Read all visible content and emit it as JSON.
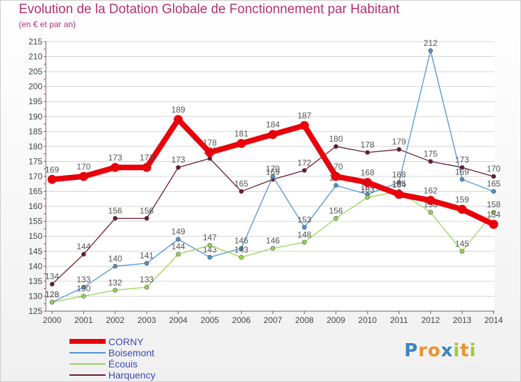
{
  "page": {
    "title": "Evolution de la Dotation Globale de Fonctionnement par Habitant",
    "subtitle": "(en € et par an)"
  },
  "logo": {
    "letters": [
      "P",
      "r",
      "o",
      "x",
      "i",
      "t",
      "i"
    ],
    "colors": [
      "#3b83c4",
      "#e8942a",
      "#e8942a",
      "#3b83c4",
      "#9fc93c",
      "#e8942a",
      "#9fc93c"
    ]
  },
  "chart_data": {
    "type": "line",
    "title": "Evolution de la Dotation Globale de Fonctionnement par Habitant",
    "subtitle": "(en € et par an)",
    "xlabel": "",
    "ylabel": "",
    "x": [
      2000,
      2001,
      2002,
      2003,
      2004,
      2005,
      2006,
      2007,
      2008,
      2009,
      2010,
      2011,
      2012,
      2013,
      2014
    ],
    "ylim": [
      125,
      215
    ],
    "yticks": [
      125,
      130,
      135,
      140,
      145,
      150,
      155,
      160,
      165,
      170,
      175,
      180,
      185,
      190,
      195,
      200,
      205,
      210,
      215
    ],
    "grid": "horizontal",
    "legend_position": "bottom-left",
    "series": [
      {
        "name": "Harquency",
        "color": "#6b1a2a",
        "values": [
          134,
          144,
          156,
          156,
          173,
          176,
          165,
          169,
          172,
          180,
          178,
          179,
          175,
          173,
          170
        ]
      },
      {
        "name": "Boisemont",
        "color": "#4f94cd",
        "values": [
          128,
          133,
          140,
          141,
          149,
          143,
          146,
          170,
          153,
          167,
          164,
          168,
          212,
          169,
          165
        ]
      },
      {
        "name": "Écouis",
        "color": "#9ad55a",
        "values": [
          128,
          130,
          132,
          133,
          144,
          147,
          143,
          146,
          148,
          156,
          163,
          165,
          158,
          145,
          158
        ]
      },
      {
        "name": "CORNY",
        "color": "#e8000b",
        "values": [
          169,
          170,
          173,
          173,
          189,
          178,
          181,
          184,
          187,
          170,
          168,
          164,
          162,
          159,
          154
        ]
      }
    ],
    "legend": [
      "CORNY",
      "Boisemont",
      "Écouis",
      "Harquency"
    ]
  }
}
